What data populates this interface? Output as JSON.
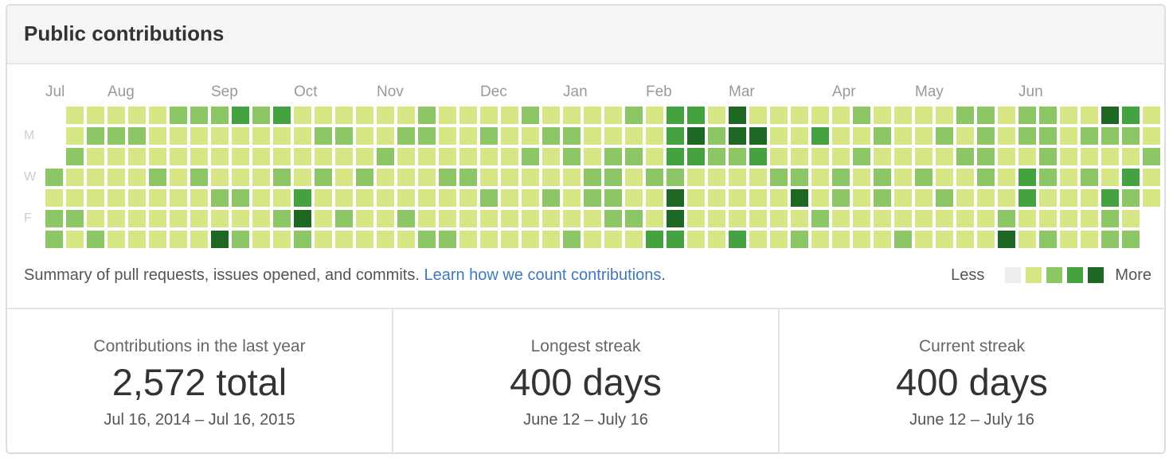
{
  "header": {
    "title": "Public contributions"
  },
  "calendar": {
    "months": [
      {
        "label": "Jul",
        "week": 0
      },
      {
        "label": "Aug",
        "week": 3
      },
      {
        "label": "Sep",
        "week": 8
      },
      {
        "label": "Oct",
        "week": 12
      },
      {
        "label": "Nov",
        "week": 16
      },
      {
        "label": "Dec",
        "week": 21
      },
      {
        "label": "Jan",
        "week": 25
      },
      {
        "label": "Feb",
        "week": 29
      },
      {
        "label": "Mar",
        "week": 33
      },
      {
        "label": "Apr",
        "week": 38
      },
      {
        "label": "May",
        "week": 42
      },
      {
        "label": "Jun",
        "week": 47
      }
    ],
    "weekdays": [
      {
        "label": "M",
        "row": 1
      },
      {
        "label": "W",
        "row": 3
      },
      {
        "label": "F",
        "row": 5
      }
    ],
    "colors": [
      "#eeeeee",
      "#d6e685",
      "#8cc665",
      "#44a340",
      "#1e6823"
    ],
    "levels": [
      [
        null,
        null,
        null,
        2,
        1,
        2,
        2
      ],
      [
        1,
        1,
        2,
        1,
        1,
        2,
        1
      ],
      [
        1,
        2,
        1,
        1,
        1,
        1,
        2
      ],
      [
        1,
        2,
        1,
        1,
        1,
        1,
        1
      ],
      [
        1,
        2,
        1,
        1,
        1,
        1,
        1
      ],
      [
        1,
        1,
        1,
        2,
        1,
        1,
        1
      ],
      [
        2,
        1,
        1,
        1,
        1,
        1,
        1
      ],
      [
        2,
        1,
        1,
        2,
        1,
        1,
        1
      ],
      [
        2,
        1,
        1,
        1,
        2,
        1,
        4
      ],
      [
        3,
        1,
        1,
        1,
        2,
        1,
        2
      ],
      [
        2,
        1,
        1,
        1,
        1,
        1,
        1
      ],
      [
        3,
        1,
        1,
        2,
        1,
        2,
        1
      ],
      [
        1,
        1,
        1,
        1,
        3,
        4,
        2
      ],
      [
        1,
        2,
        1,
        2,
        1,
        1,
        1
      ],
      [
        1,
        2,
        1,
        1,
        1,
        2,
        1
      ],
      [
        1,
        1,
        1,
        2,
        1,
        1,
        1
      ],
      [
        1,
        1,
        2,
        1,
        1,
        1,
        1
      ],
      [
        1,
        2,
        1,
        1,
        1,
        2,
        1
      ],
      [
        2,
        2,
        1,
        1,
        1,
        1,
        2
      ],
      [
        1,
        1,
        1,
        2,
        1,
        1,
        2
      ],
      [
        1,
        1,
        1,
        2,
        1,
        1,
        1
      ],
      [
        1,
        2,
        1,
        1,
        2,
        1,
        1
      ],
      [
        1,
        1,
        1,
        1,
        1,
        1,
        1
      ],
      [
        2,
        1,
        2,
        1,
        1,
        1,
        1
      ],
      [
        1,
        2,
        1,
        1,
        2,
        1,
        1
      ],
      [
        1,
        2,
        2,
        1,
        1,
        1,
        2
      ],
      [
        1,
        1,
        1,
        2,
        2,
        1,
        1
      ],
      [
        1,
        1,
        2,
        2,
        2,
        2,
        1
      ],
      [
        2,
        1,
        2,
        1,
        1,
        2,
        1
      ],
      [
        1,
        1,
        1,
        2,
        1,
        1,
        3
      ],
      [
        3,
        3,
        3,
        2,
        4,
        4,
        3
      ],
      [
        3,
        4,
        3,
        1,
        1,
        1,
        1
      ],
      [
        1,
        2,
        2,
        1,
        1,
        1,
        1
      ],
      [
        4,
        4,
        2,
        1,
        1,
        1,
        3
      ],
      [
        1,
        4,
        3,
        1,
        1,
        1,
        1
      ],
      [
        1,
        1,
        1,
        2,
        1,
        1,
        1
      ],
      [
        1,
        1,
        1,
        2,
        4,
        1,
        2
      ],
      [
        1,
        3,
        1,
        1,
        1,
        2,
        1
      ],
      [
        1,
        1,
        1,
        2,
        2,
        1,
        1
      ],
      [
        2,
        1,
        2,
        1,
        1,
        1,
        1
      ],
      [
        1,
        2,
        1,
        2,
        2,
        1,
        1
      ],
      [
        1,
        1,
        1,
        1,
        1,
        1,
        2
      ],
      [
        1,
        1,
        1,
        2,
        1,
        1,
        1
      ],
      [
        1,
        2,
        1,
        1,
        2,
        1,
        1
      ],
      [
        2,
        1,
        2,
        1,
        1,
        1,
        1
      ],
      [
        2,
        2,
        2,
        2,
        1,
        1,
        1
      ],
      [
        1,
        1,
        1,
        1,
        1,
        2,
        4
      ],
      [
        2,
        2,
        1,
        3,
        3,
        1,
        1
      ],
      [
        2,
        2,
        2,
        2,
        1,
        1,
        2
      ],
      [
        1,
        1,
        1,
        1,
        1,
        1,
        1
      ],
      [
        1,
        2,
        1,
        2,
        1,
        1,
        1
      ],
      [
        4,
        2,
        1,
        1,
        3,
        2,
        2
      ],
      [
        3,
        2,
        1,
        3,
        2,
        1,
        2
      ],
      [
        1,
        1,
        2,
        1,
        1,
        null,
        null
      ]
    ]
  },
  "summary": {
    "text": "Summary of pull requests, issues opened, and commits. ",
    "link": "Learn how we count contributions",
    "period": "."
  },
  "legend": {
    "less": "Less",
    "more": "More"
  },
  "stats": [
    {
      "label": "Contributions in the last year",
      "value": "2,572 total",
      "range": "Jul 16, 2014 – Jul 16, 2015"
    },
    {
      "label": "Longest streak",
      "value": "400 days",
      "range": "June 12 – July 16"
    },
    {
      "label": "Current streak",
      "value": "400 days",
      "range": "June 12 – July 16"
    }
  ]
}
